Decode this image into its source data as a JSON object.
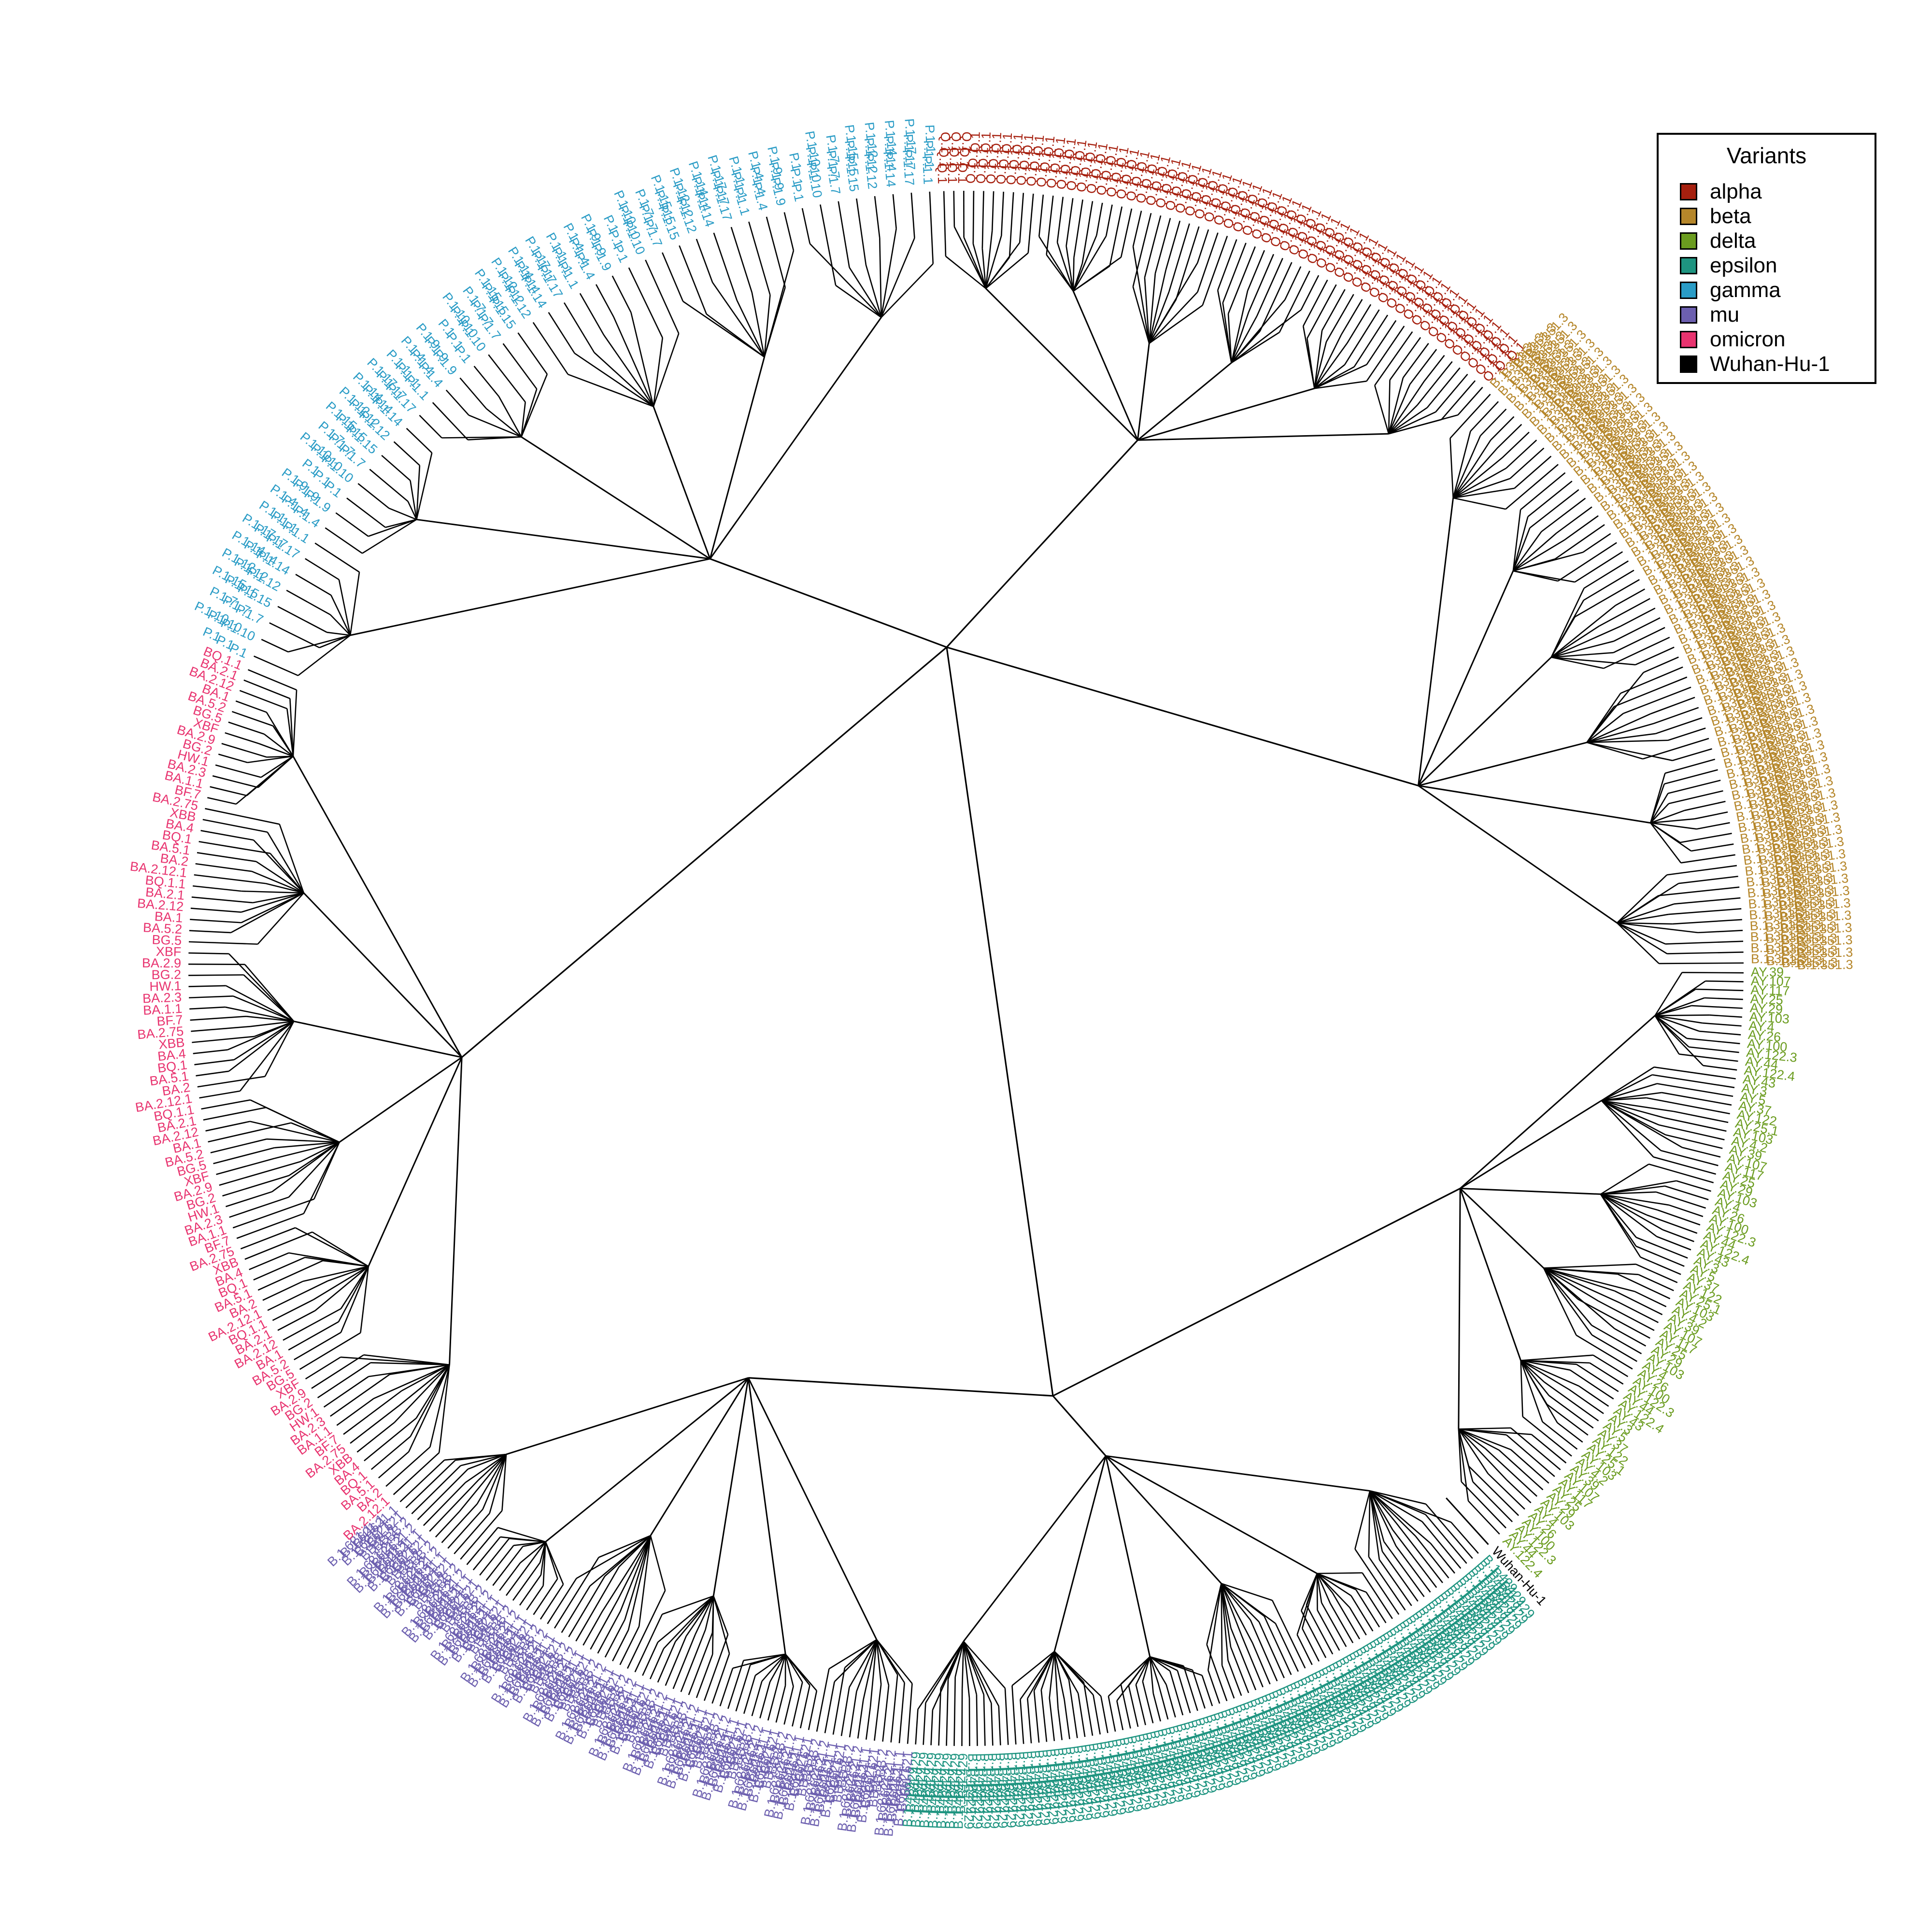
{
  "legend": {
    "title": "Variants",
    "items": [
      {
        "name": "alpha",
        "color": "#A6200F"
      },
      {
        "name": "beta",
        "color": "#B5862A"
      },
      {
        "name": "delta",
        "color": "#6B9C1F"
      },
      {
        "name": "epsilon",
        "color": "#1E9480"
      },
      {
        "name": "gamma",
        "color": "#2A9CC6"
      },
      {
        "name": "mu",
        "color": "#6C5FAF"
      },
      {
        "name": "omicron",
        "color": "#E8336F"
      },
      {
        "name": "Wuhan-Hu-1",
        "color": "#000000"
      }
    ]
  },
  "tree": {
    "branch_color": "#000000",
    "root_label": "Wuhan-Hu-1",
    "clades": [
      {
        "variant": "alpha",
        "tip_label": "Q.1",
        "count": 60,
        "bands": 3
      },
      {
        "variant": "beta",
        "tip_label": "B.1.351.3",
        "count": 60,
        "bands": 4
      },
      {
        "variant": "delta",
        "tip_label": "AY.103",
        "count": 72,
        "bands": 1
      },
      {
        "variant": "Wuhan-Hu-1",
        "tip_label": "Wuhan-Hu-1",
        "count": 1,
        "bands": 1
      },
      {
        "variant": "epsilon",
        "tip_label": "B.1.429",
        "count": 80,
        "bands": 3
      },
      {
        "variant": "mu",
        "tip_label": "B.1.621.1",
        "count": 70,
        "bands": 3
      },
      {
        "variant": "omicron",
        "tip_label": "BA.2.12.1",
        "count": 80,
        "bands": 1
      },
      {
        "variant": "gamma",
        "tip_label": "P.1.10",
        "count": 48,
        "bands": 3
      }
    ],
    "omicron_labels": [
      "BA.2.12.1",
      "BA.2",
      "BA.5.1",
      "BQ.1",
      "BA.4",
      "XBB",
      "BA.2.75",
      "BF.7",
      "BA.1.1",
      "BA.2.3",
      "HW.1",
      "BG.2",
      "BA.2.9",
      "XBF",
      "BG.5",
      "BA.5.2",
      "BA.1",
      "BA.2.12",
      "BA.2.1",
      "BQ.1.1"
    ],
    "delta_labels": [
      "AY.39",
      "AY.107",
      "AY.117",
      "AY.25",
      "AY.29",
      "AY.103",
      "AY.4",
      "AY.26",
      "AY.100",
      "AY.122.3",
      "AY.44",
      "AY.122.4",
      "AY.43",
      "AY.3",
      "AY.5",
      "AY.37",
      "AY.122",
      "AY.25.1",
      "AY.103",
      "AY.4.2"
    ],
    "gamma_labels": [
      "P.1",
      "P.1.10",
      "P.1.7",
      "P.1.15",
      "P.1.12",
      "P.1.14",
      "P.1.17",
      "P.1.1",
      "P.1.4",
      "P.1.9"
    ],
    "mu_labels": [
      "B.1.621",
      "B.1.621.1",
      "B.1.621.2",
      "BB.2"
    ]
  }
}
